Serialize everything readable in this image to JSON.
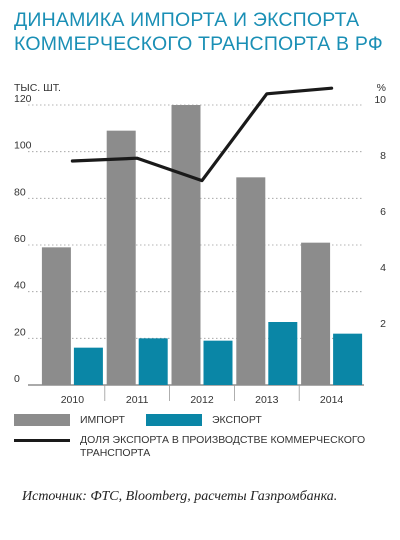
{
  "title_lines": [
    "ДИНАМИКА ИМПОРТА И ЭКСПОРТА",
    "КОММЕРЧЕСКОГО ТРАНСПОРТА В РФ"
  ],
  "source": "Источник: ФТС, Bloomberg,  расчеты Газпромбанка.",
  "chart_data": {
    "type": "bar",
    "title": "ДИНАМИКА ИМПОРТА И ЭКСПОРТА КОММЕРЧЕСКОГО ТРАНСПОРТА В РФ",
    "categories": [
      "2010",
      "2011",
      "2012",
      "2013",
      "2014"
    ],
    "ylabel_left": "ТЫС. ШТ.",
    "ylabel_right": "%",
    "ylim_left": [
      0,
      120
    ],
    "ylim_right": [
      0,
      10
    ],
    "yticks_left": [
      0,
      20,
      40,
      60,
      80,
      100,
      120
    ],
    "yticks_right": [
      2,
      4,
      6,
      8,
      10
    ],
    "grid": true,
    "legend_position": "bottom",
    "series": [
      {
        "name": "ИМПОРТ",
        "type": "bar",
        "axis": "left",
        "color": "#8c8c8c",
        "values": [
          59,
          109,
          120,
          89,
          61
        ]
      },
      {
        "name": "ЭКСПОРТ",
        "type": "bar",
        "axis": "left",
        "color": "#0a86a6",
        "values": [
          16,
          20,
          19,
          27,
          22
        ]
      },
      {
        "name": "ДОЛЯ ЭКСПОРТА В ПРОИЗВОДСТВЕ КОММЕРЧЕСКОГО ТРАНСПОРТА",
        "type": "line",
        "axis": "right",
        "color": "#1a1a1a",
        "values": [
          8.0,
          8.1,
          7.3,
          10.4,
          10.6
        ]
      }
    ]
  }
}
